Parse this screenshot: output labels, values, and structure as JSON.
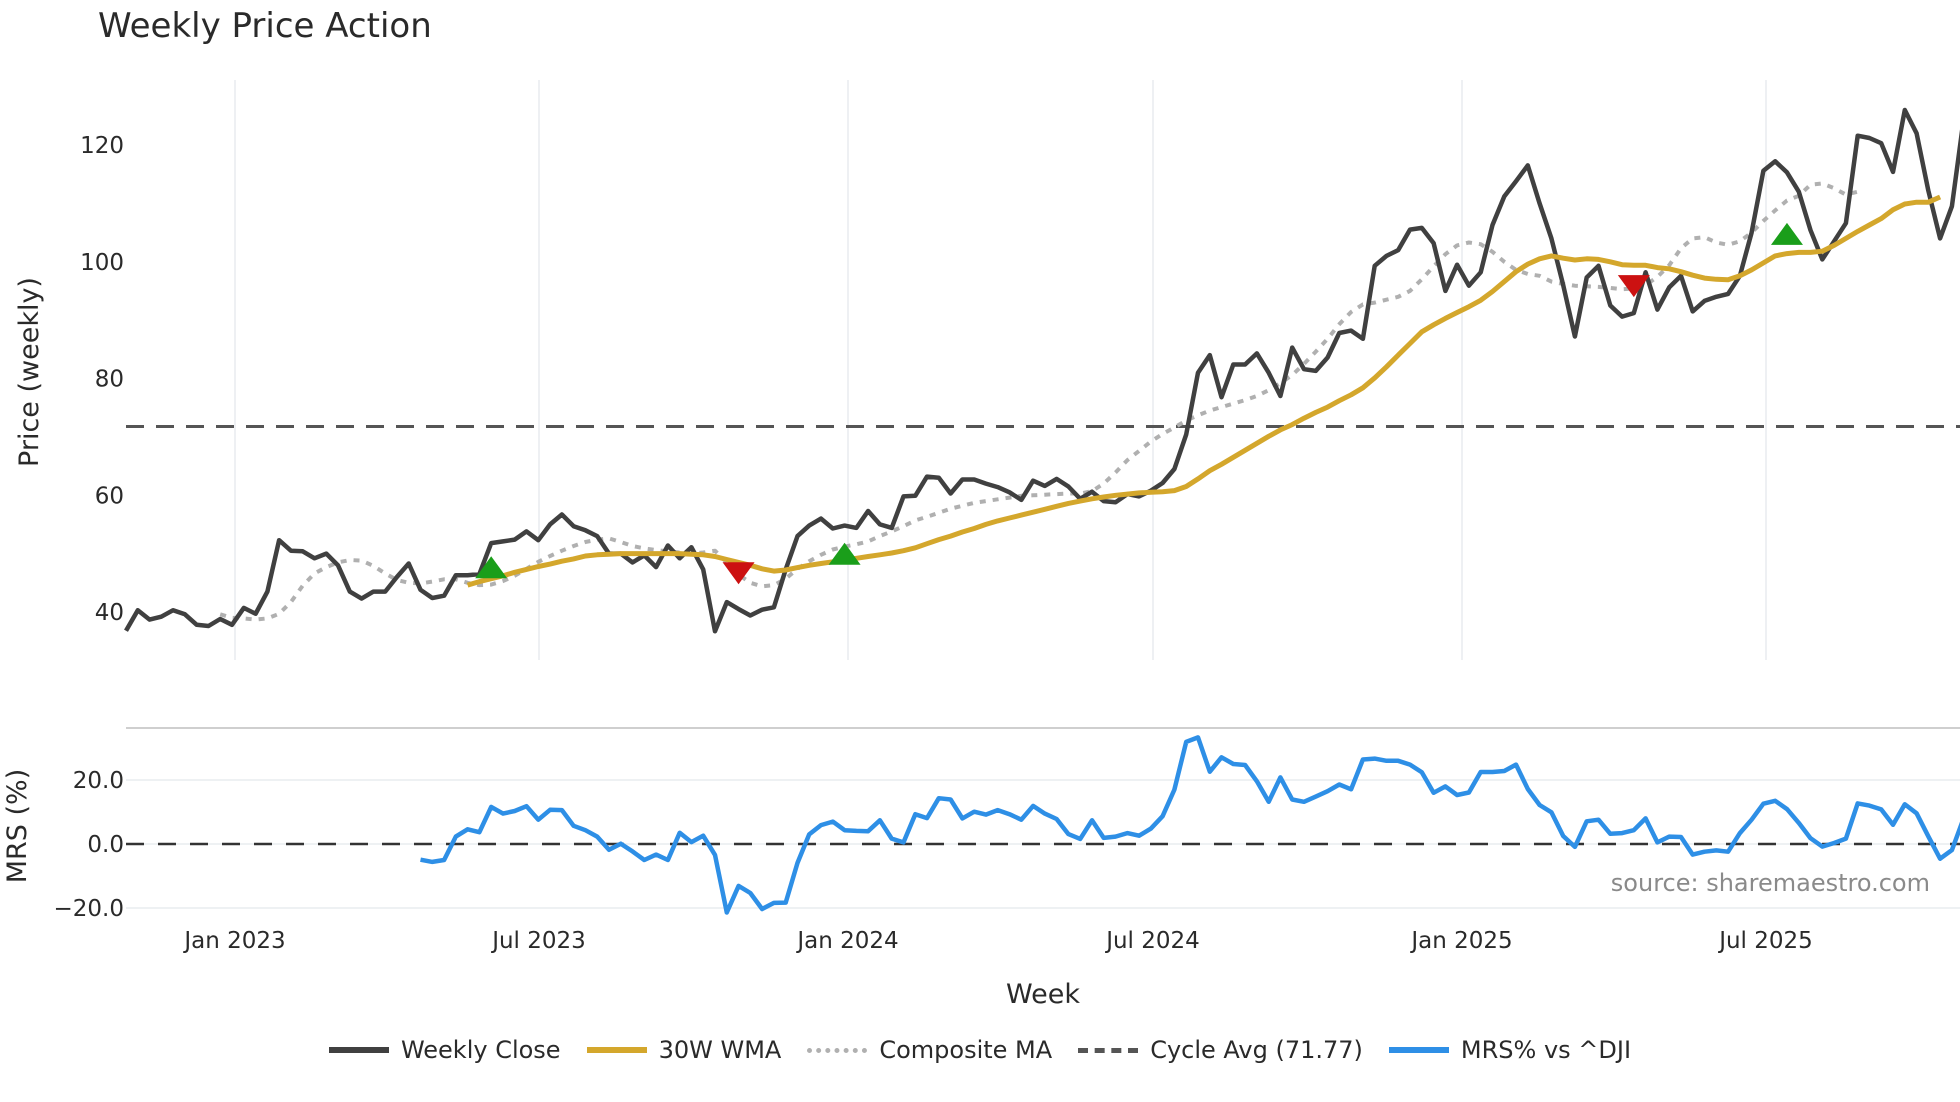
{
  "title": "Weekly Price Action",
  "source_note": "source: sharemaestro.com",
  "legend": [
    {
      "label": "Weekly Close",
      "color": "#404040",
      "style": "solid"
    },
    {
      "label": "30W WMA",
      "color": "#d4a72c",
      "style": "solid"
    },
    {
      "label": "Composite MA",
      "color": "#b0b0b0",
      "style": "dotted"
    },
    {
      "label": "Cycle Avg (71.77)",
      "color": "#555555",
      "style": "dashed"
    },
    {
      "label": "MRS% vs ^DJI",
      "color": "#2e8fe6",
      "style": "solid"
    }
  ],
  "chart_data": [
    {
      "type": "line",
      "title": "Weekly Price Action",
      "xlabel": "Week",
      "ylabel": "Price (weekly)",
      "x_tick_labels": [
        "Jan 2023",
        "Jul 2023",
        "Jan 2024",
        "Jul 2024",
        "Jan 2025",
        "Jul 2025"
      ],
      "y_ticks": [
        40,
        60,
        80,
        100,
        120
      ],
      "ylim": [
        33,
        131
      ],
      "grid": "vertical",
      "x_start": "2022-11-21",
      "x_step": "1 week",
      "cycle_avg": 71.77,
      "series": [
        {
          "name": "Weekly Close",
          "color": "#404040",
          "values": [
            36.8,
            40.3,
            38.7,
            39.2,
            40.3,
            39.6,
            37.8,
            37.6,
            38.8,
            37.8,
            40.7,
            39.7,
            43.5,
            52.3,
            50.5,
            50.4,
            49.2,
            50.0,
            48.0,
            43.5,
            42.3,
            43.5,
            43.5,
            46.0,
            48.3,
            43.8,
            42.4,
            42.8,
            46.3,
            46.3,
            46.5,
            51.8,
            52.1,
            52.4,
            53.8,
            52.3,
            55.0,
            56.7,
            54.7,
            54.0,
            53.0,
            50.0,
            50.0,
            48.5,
            49.7,
            47.7,
            51.4,
            49.2,
            51.1,
            47.3,
            36.7,
            41.7,
            40.5,
            39.4,
            40.4,
            40.8,
            47.3,
            53.0,
            54.8,
            56.0,
            54.3,
            54.8,
            54.4,
            57.3,
            55.0,
            54.4,
            59.8,
            59.9,
            63.2,
            63.0,
            60.3,
            62.7,
            62.7,
            62.0,
            61.4,
            60.5,
            59.2,
            62.5,
            61.6,
            62.8,
            61.5,
            59.4,
            60.6,
            59.0,
            58.8,
            60.2,
            59.8,
            60.8,
            62.1,
            64.5,
            70.4,
            81.0,
            84.0,
            76.8,
            82.4,
            82.4,
            84.3,
            81.0,
            77.0,
            85.3,
            81.6,
            81.3,
            83.6,
            87.8,
            88.2,
            86.8,
            99.3,
            101.0,
            102.0,
            105.5,
            105.8,
            103.2,
            95.0,
            99.5,
            95.9,
            98.2,
            106.3,
            111.2,
            113.8,
            116.5,
            110.0,
            104.0,
            96.0,
            87.2,
            97.3,
            99.3,
            92.5,
            90.6,
            91.2,
            98.2,
            91.8,
            95.6,
            97.6,
            91.5,
            93.3,
            94.0,
            94.5,
            97.6,
            105.0,
            115.6,
            117.2,
            115.3,
            112.0,
            105.4,
            100.4,
            103.5,
            106.6,
            121.6,
            121.2,
            120.3,
            115.4,
            126.0,
            122.0,
            112.2,
            104.0,
            109.5,
            124.5
          ]
        },
        {
          "name": "30W WMA",
          "color": "#d4a72c",
          "start_index": 29,
          "values": [
            44.6,
            45.2,
            45.7,
            46.2,
            46.8,
            47.3,
            47.8,
            48.2,
            48.7,
            49.1,
            49.6,
            49.8,
            49.9,
            50.0,
            50.0,
            50.0,
            50.0,
            50.0,
            50.0,
            49.9,
            49.8,
            49.5,
            49.0,
            48.5,
            48.0,
            47.4,
            47.0,
            47.2,
            47.6,
            48.0,
            48.3,
            48.6,
            48.9,
            49.2,
            49.5,
            49.8,
            50.1,
            50.5,
            51.0,
            51.7,
            52.4,
            53.0,
            53.7,
            54.3,
            55.0,
            55.6,
            56.1,
            56.6,
            57.1,
            57.6,
            58.1,
            58.6,
            59.0,
            59.4,
            59.7,
            60.0,
            60.2,
            60.4,
            60.5,
            60.6,
            60.8,
            61.5,
            62.8,
            64.2,
            65.3,
            66.5,
            67.7,
            68.9,
            70.1,
            71.2,
            72.1,
            73.2,
            74.2,
            75.1,
            76.2,
            77.2,
            78.4,
            80.1,
            82.0,
            84.0,
            86.0,
            88.0,
            89.2,
            90.3,
            91.3,
            92.3,
            93.4,
            94.9,
            96.6,
            98.3,
            99.6,
            100.5,
            101.0,
            100.6,
            100.3,
            100.5,
            100.4,
            100.0,
            99.5,
            99.4,
            99.4,
            99.0,
            98.8,
            98.3,
            97.7,
            97.2,
            97.0,
            96.9,
            97.6,
            98.6,
            99.8,
            101.0,
            101.4,
            101.6,
            101.6,
            101.8,
            102.8,
            104.0,
            105.2,
            106.3,
            107.4,
            108.9,
            109.9,
            110.2,
            110.2,
            111.1
          ]
        },
        {
          "name": "Composite MA",
          "color": "#b0b0b0",
          "style": "dotted",
          "start_index": 8,
          "values": [
            39.6,
            39.0,
            38.9,
            38.7,
            38.9,
            39.7,
            41.7,
            44.5,
            46.6,
            47.7,
            48.5,
            48.9,
            48.8,
            47.9,
            46.6,
            45.5,
            45.0,
            44.9,
            45.2,
            45.6,
            45.6,
            45.0,
            44.6,
            44.7,
            45.3,
            46.2,
            47.4,
            48.6,
            49.6,
            50.5,
            51.3,
            52.0,
            52.4,
            52.6,
            52.0,
            51.3,
            50.9,
            50.6,
            50.4,
            50.2,
            50.0,
            50.2,
            50.5,
            48.5,
            46.4,
            45.0,
            44.4,
            44.6,
            45.7,
            47.4,
            48.7,
            49.8,
            50.7,
            51.2,
            51.6,
            52.1,
            53.0,
            53.8,
            54.7,
            55.7,
            56.3,
            57.0,
            57.7,
            58.2,
            58.7,
            59.0,
            59.3,
            59.6,
            59.9,
            60.0,
            60.1,
            60.2,
            60.3,
            60.3,
            60.7,
            62.0,
            63.9,
            66.0,
            67.6,
            69.2,
            70.5,
            71.6,
            72.8,
            73.7,
            74.5,
            75.1,
            75.7,
            76.3,
            77.0,
            78.0,
            79.2,
            80.6,
            82.5,
            84.6,
            86.8,
            89.3,
            91.4,
            92.7,
            93.0,
            93.5,
            94.0,
            95.0,
            97.0,
            99.2,
            101.3,
            102.8,
            103.3,
            103.0,
            101.7,
            100.0,
            98.6,
            97.9,
            97.6,
            96.6,
            96.2,
            95.9,
            95.8,
            95.7,
            95.5,
            95.3,
            95.4,
            96.0,
            97.4,
            99.4,
            102.3,
            104.0,
            104.2,
            103.3,
            102.9,
            103.5,
            105.0,
            107.0,
            108.8,
            110.5,
            111.3,
            113.2,
            113.4,
            112.6,
            111.5,
            112.0
          ]
        }
      ],
      "signals": [
        {
          "type": "buy",
          "index": 31,
          "price": 47.5,
          "color": "#1a9e1a"
        },
        {
          "type": "sell",
          "index": 52,
          "price": 46.8,
          "color": "#cc1111"
        },
        {
          "type": "buy",
          "index": 61,
          "price": 49.8,
          "color": "#1a9e1a"
        },
        {
          "type": "sell",
          "index": 128,
          "price": 96.0,
          "color": "#cc1111"
        },
        {
          "type": "buy",
          "index": 141,
          "price": 104.6,
          "color": "#1a9e1a"
        }
      ]
    },
    {
      "type": "line",
      "title": "",
      "xlabel": "Week",
      "ylabel": "MRS (%)",
      "y_ticks": [
        -20.0,
        0.0,
        20.0
      ],
      "y_tick_labels": [
        "−20.0",
        "0.0",
        "20.0"
      ],
      "ylim": [
        -24,
        36
      ],
      "series": [
        {
          "name": "MRS% vs ^DJI",
          "color": "#2e8fe6",
          "start_index": 25,
          "values": [
            -4.9,
            -5.6,
            -5.0,
            2.3,
            4.6,
            3.7,
            11.6,
            9.5,
            10.3,
            11.8,
            7.6,
            10.7,
            10.6,
            5.7,
            4.3,
            2.3,
            -1.8,
            0.1,
            -2.3,
            -5.0,
            -3.3,
            -5.0,
            3.5,
            0.6,
            2.6,
            -3.4,
            -21.4,
            -13.1,
            -15.3,
            -20.3,
            -18.4,
            -18.3,
            -5.9,
            3.0,
            5.9,
            7.0,
            4.3,
            4.1,
            4.0,
            7.4,
            1.7,
            0.5,
            9.3,
            8.1,
            14.3,
            13.9,
            8.0,
            10.1,
            9.2,
            10.6,
            9.3,
            7.6,
            11.9,
            9.5,
            7.8,
            3.1,
            1.6,
            7.4,
            1.9,
            2.3,
            3.4,
            2.6,
            4.8,
            8.7,
            17.0,
            31.9,
            33.3,
            22.6,
            27.1,
            25.0,
            24.7,
            19.6,
            13.2,
            20.8,
            13.9,
            13.2,
            14.8,
            16.5,
            18.6,
            17.1,
            26.4,
            26.7,
            26.0,
            26.0,
            24.8,
            22.4,
            16.0,
            18.0,
            15.3,
            16.1,
            22.5,
            22.5,
            22.8,
            24.8,
            17.2,
            12.2,
            9.9,
            2.5,
            -0.9,
            7.1,
            7.6,
            3.2,
            3.4,
            4.3,
            8.0,
            0.5,
            2.3,
            2.2,
            -3.3,
            -2.4,
            -2.0,
            -2.4,
            3.4,
            7.6,
            12.6,
            13.5,
            10.9,
            6.6,
            1.8,
            -0.8,
            0.3,
            1.7,
            12.7,
            12.0,
            10.8,
            6.0,
            12.4,
            9.6,
            2.4,
            -4.6,
            -1.9,
            8.1
          ]
        }
      ],
      "reference_line": 0.0
    }
  ]
}
